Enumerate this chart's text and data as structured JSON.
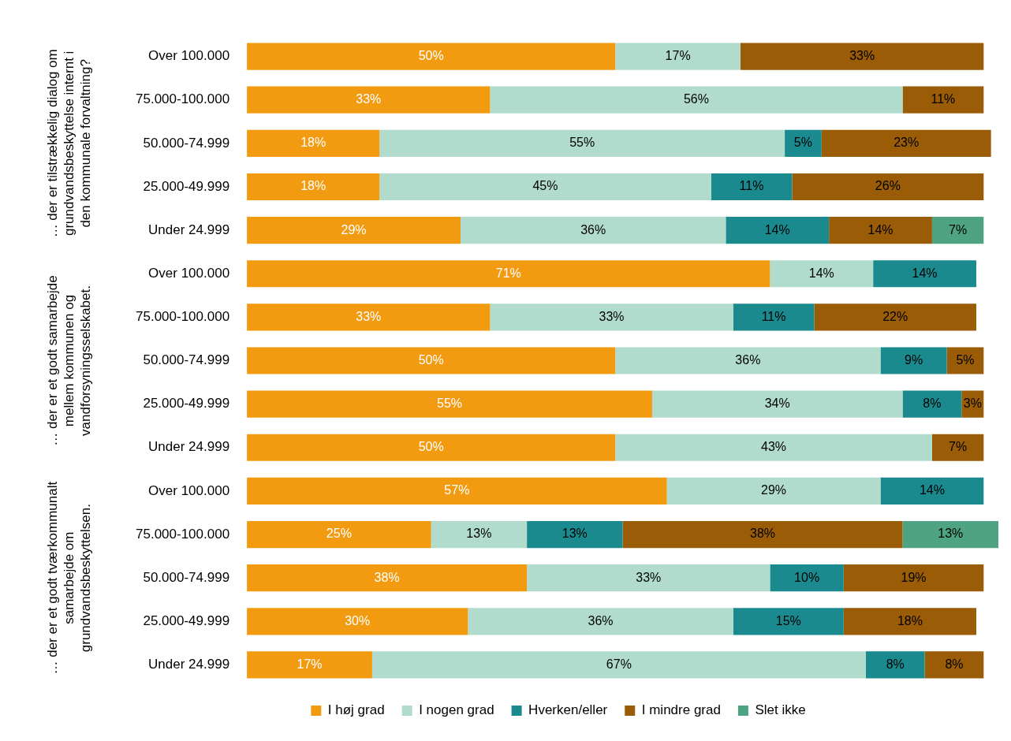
{
  "chart_data": {
    "type": "bar",
    "orientation": "horizontal",
    "stacked": true,
    "legend": "bottom",
    "annotations": [
      "… der er tilstrækkelig dialog om grundvandsbeskyttelse internt i den kommunale forvaltning?",
      "… der er et godt samarbejde mellem kommunen og vandforsyningsselskabet.",
      "… der er et godt tværkommunalt samarbejde om grundvandsbeskyttelsen."
    ],
    "categories": [
      "Over 100.000",
      "75.000-100.000",
      "50.000-74.999",
      "25.000-49.999",
      "Under 24.999",
      "Over 100.000",
      "75.000-100.000",
      "50.000-74.999",
      "25.000-49.999",
      "Under 24.999",
      "Over 100.000",
      "75.000-100.000",
      "50.000-74.999",
      "25.000-49.999",
      "Under 24.999"
    ],
    "series": [
      {
        "name": "I høj grad",
        "color": "#f29b11",
        "values": [
          50,
          33,
          18,
          18,
          29,
          71,
          33,
          50,
          55,
          50,
          57,
          25,
          38,
          30,
          17
        ],
        "value_labels": [
          "50%",
          "33%",
          "18%",
          "18%",
          "29%",
          "71%",
          "33%",
          "50%",
          "55%",
          "50%",
          "57%",
          "25%",
          "38%",
          "30%",
          "17%"
        ]
      },
      {
        "name": "I nogen grad",
        "color": "#b1dccd",
        "values": [
          17,
          56,
          55,
          45,
          36,
          14,
          33,
          36,
          34,
          43,
          29,
          13,
          33,
          36,
          67
        ],
        "value_labels": [
          "17%",
          "56%",
          "55%",
          "45%",
          "36%",
          "14%",
          "33%",
          "36%",
          "34%",
          "43%",
          "29%",
          "13%",
          "33%",
          "36%",
          "67%"
        ]
      },
      {
        "name": "Hverken/eller",
        "color": "#1b8a8e",
        "values": [
          null,
          null,
          5,
          11,
          14,
          14,
          11,
          9,
          8,
          null,
          14,
          13,
          10,
          15,
          8
        ],
        "value_labels": [
          null,
          null,
          "5%",
          "11%",
          "14%",
          "14%",
          "11%",
          "9%",
          "8%",
          null,
          "14%",
          "13%",
          "10%",
          "15%",
          "8%"
        ]
      },
      {
        "name": "I mindre grad",
        "color": "#9a5c07",
        "values": [
          33,
          11,
          23,
          26,
          14,
          null,
          22,
          5,
          3,
          7,
          null,
          38,
          19,
          18,
          8
        ],
        "value_labels": [
          "33%",
          "11%",
          "23%",
          "26%",
          "14%",
          null,
          "22%",
          "5%",
          "3%",
          "7%",
          null,
          "38%",
          "19%",
          "18%",
          "8%"
        ]
      },
      {
        "name": "Slet ikke",
        "color": "#4ea383",
        "values": [
          null,
          null,
          null,
          null,
          7,
          null,
          null,
          null,
          null,
          null,
          null,
          13,
          null,
          null,
          null
        ],
        "value_labels": [
          null,
          null,
          null,
          null,
          "7%",
          null,
          null,
          null,
          null,
          null,
          null,
          "13%",
          null,
          null,
          null
        ]
      }
    ]
  }
}
